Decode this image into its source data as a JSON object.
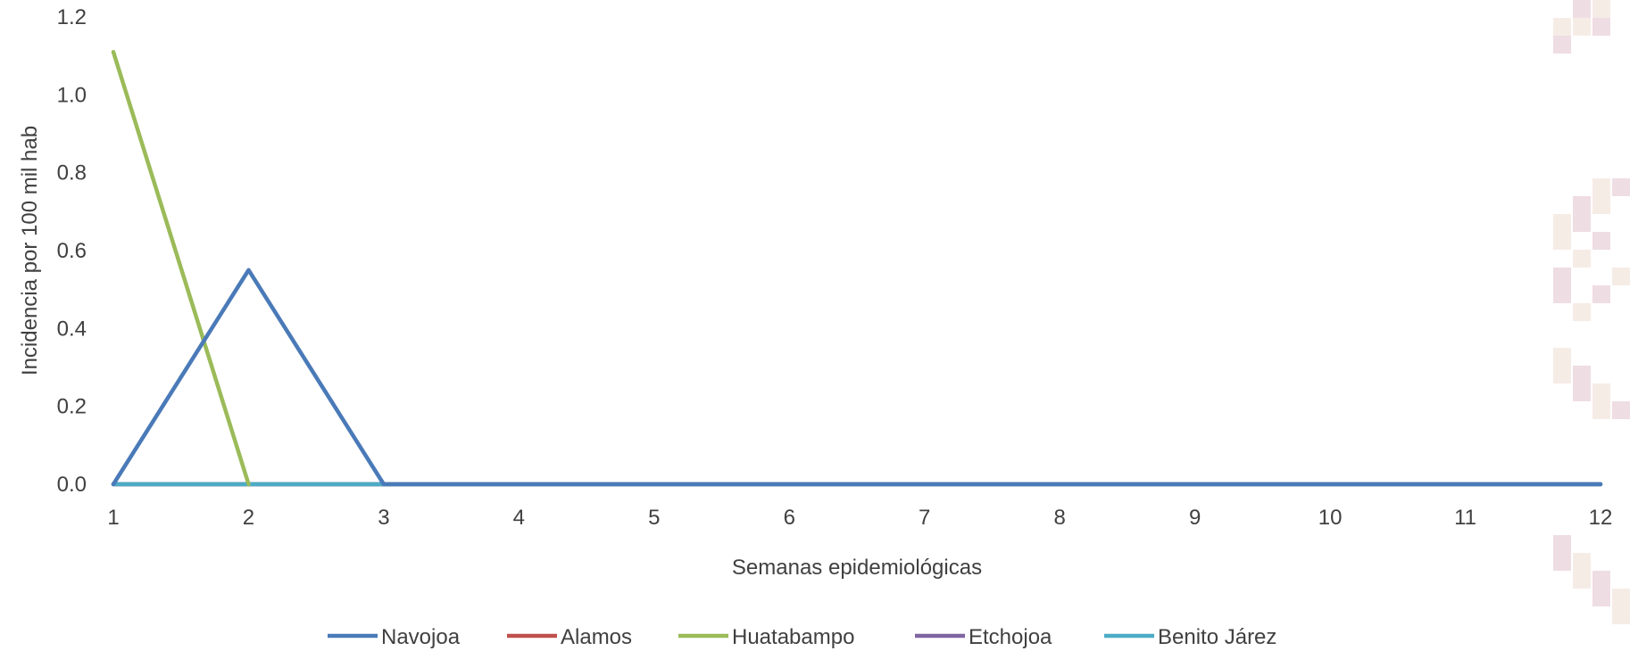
{
  "chart_data": {
    "type": "line",
    "xlabel": "Semanas epidemiológicas",
    "ylabel": "Incidencia por 100 mil hab",
    "x": [
      1,
      2,
      3,
      4,
      5,
      6,
      7,
      8,
      9,
      10,
      11,
      12
    ],
    "ylim": [
      0,
      1.2
    ],
    "yticks": [
      "0.0",
      "0.2",
      "0.4",
      "0.6",
      "0.8",
      "1.0",
      "1.2"
    ],
    "legend_position": "bottom",
    "grid": false,
    "series": [
      {
        "name": "Navojoa",
        "color": "#4a7ab8",
        "values": [
          0,
          0.55,
          0,
          0,
          0,
          0,
          0,
          0,
          0,
          0,
          0,
          0
        ]
      },
      {
        "name": "Alamos",
        "color": "#c0504d",
        "values": [
          0,
          0,
          0,
          0,
          0,
          0,
          0,
          0,
          0,
          0,
          0,
          0
        ]
      },
      {
        "name": "Huatabampo",
        "color": "#9bbb59",
        "values": [
          1.11,
          0,
          null,
          null,
          null,
          null,
          null,
          null,
          null,
          null,
          null,
          null
        ]
      },
      {
        "name": "Etchojoa",
        "color": "#8064a2",
        "values": [
          0,
          0,
          0,
          0,
          0,
          0,
          0,
          0,
          0,
          0,
          0,
          0
        ]
      },
      {
        "name": "Benito Járez",
        "color": "#4bacc6",
        "values": [
          0,
          0,
          0,
          0,
          0,
          0,
          0,
          0,
          0,
          0,
          0,
          0
        ]
      }
    ]
  },
  "decoration": {
    "pattern_colors": [
      "#f6ece6",
      "#efdde4"
    ]
  }
}
